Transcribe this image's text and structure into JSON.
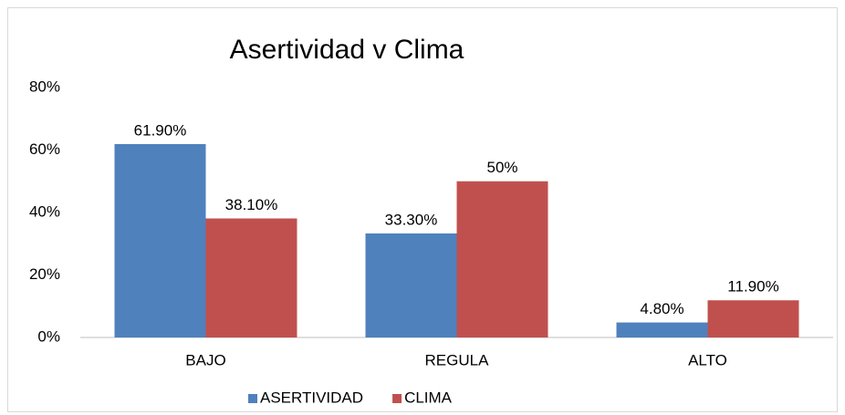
{
  "chart_data": {
    "type": "bar",
    "title": "Asertividad v Clima",
    "categories": [
      "BAJO",
      "REGULA",
      "ALTO"
    ],
    "series": [
      {
        "name": "ASERTIVIDAD",
        "color": "#4f81bd",
        "values": [
          61.9,
          33.3,
          4.8
        ],
        "value_labels": [
          "61.90%",
          "33.30%",
          "4.80%"
        ]
      },
      {
        "name": "CLIMA",
        "color": "#c0504d",
        "values": [
          38.1,
          50,
          11.9
        ],
        "value_labels": [
          "38.10%",
          "50%",
          "11.90%"
        ]
      }
    ],
    "ylim": [
      0,
      80
    ],
    "yticks": [
      {
        "value": 0,
        "label": "0%"
      },
      {
        "value": 20,
        "label": "20%"
      },
      {
        "value": 40,
        "label": "40%"
      },
      {
        "value": 60,
        "label": "60%"
      },
      {
        "value": 80,
        "label": "80%"
      }
    ],
    "grid": false,
    "legend": "bottom"
  }
}
